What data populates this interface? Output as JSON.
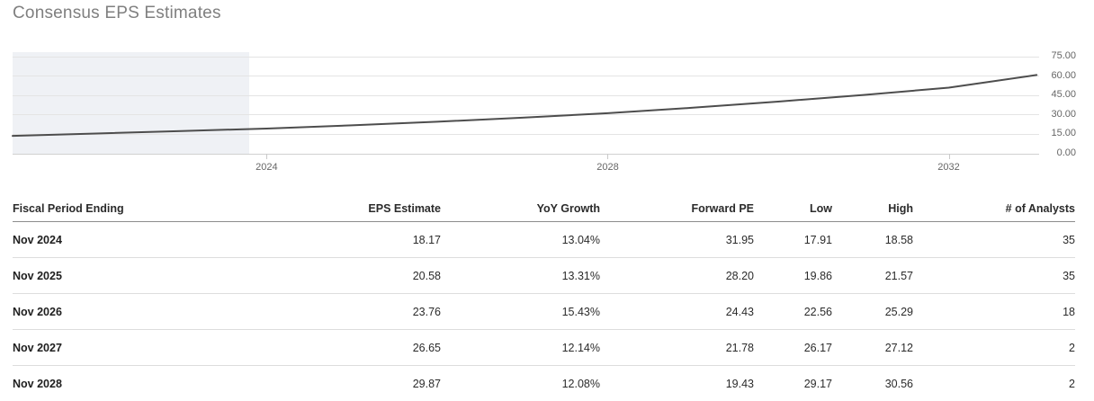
{
  "title": "Consensus EPS Estimates",
  "chart_data": {
    "type": "line",
    "title": "Consensus EPS Estimates",
    "xlabel": "",
    "ylabel": "",
    "xlim": [
      2021.02,
      2033.06
    ],
    "ylim": [
      0,
      75
    ],
    "grid": "horizontal",
    "y_axis_position": "right",
    "legend": "none",
    "x_ticks": [
      {
        "value": 2024,
        "label": "2024"
      },
      {
        "value": 2028,
        "label": "2028"
      },
      {
        "value": 2032,
        "label": "2032"
      }
    ],
    "y_ticks": [
      {
        "value": 0,
        "label": "0.00"
      },
      {
        "value": 15,
        "label": "15.00"
      },
      {
        "value": 30,
        "label": "30.00"
      },
      {
        "value": 45,
        "label": "45.00"
      },
      {
        "value": 60,
        "label": "60.00"
      },
      {
        "value": 75,
        "label": "75.00"
      }
    ],
    "series": [
      {
        "name": "EPS Estimate",
        "color": "#4d4d4d",
        "points": [
          [
            2021.02,
            13.5
          ],
          [
            2022.0,
            15.3
          ],
          [
            2023.0,
            17.2
          ],
          [
            2024.0,
            19.1
          ],
          [
            2025.0,
            21.6
          ],
          [
            2026.0,
            24.4
          ],
          [
            2027.0,
            27.5
          ],
          [
            2028.0,
            31.0
          ],
          [
            2029.0,
            35.2
          ],
          [
            2030.0,
            39.9
          ],
          [
            2031.0,
            45.1
          ],
          [
            2032.0,
            50.7
          ],
          [
            2033.03,
            60.5
          ]
        ]
      }
    ],
    "highlight_band": {
      "x_start": 2021.02,
      "x_end": 2023.79,
      "color": "#eff1f5",
      "note": "shaded historical period"
    }
  },
  "table": {
    "columns": [
      {
        "label": "Fiscal Period Ending",
        "align": "left"
      },
      {
        "label": "EPS Estimate",
        "align": "right"
      },
      {
        "label": "YoY Growth",
        "align": "right"
      },
      {
        "label": "Forward PE",
        "align": "right"
      },
      {
        "label": "Low",
        "align": "right"
      },
      {
        "label": "High",
        "align": "right"
      },
      {
        "label": "# of Analysts",
        "align": "right"
      }
    ],
    "rows": [
      [
        "Nov 2024",
        "18.17",
        "13.04%",
        "31.95",
        "17.91",
        "18.58",
        "35"
      ],
      [
        "Nov 2025",
        "20.58",
        "13.31%",
        "28.20",
        "19.86",
        "21.57",
        "35"
      ],
      [
        "Nov 2026",
        "23.76",
        "15.43%",
        "24.43",
        "22.56",
        "25.29",
        "18"
      ],
      [
        "Nov 2027",
        "26.65",
        "12.14%",
        "21.78",
        "26.17",
        "27.12",
        "2"
      ],
      [
        "Nov 2028",
        "29.87",
        "12.08%",
        "19.43",
        "29.17",
        "30.56",
        "2"
      ]
    ]
  },
  "colors": {
    "title_text": "#7f7f7f",
    "series_line": "#4d4d4d",
    "highlight_band": "#eff1f5",
    "gridline": "#e4e4e4",
    "axis_line": "#d0d0d0",
    "tick_label": "#666666",
    "table_text": "#2b2b2b",
    "header_border": "#8c8c8c",
    "row_border": "#dddddd"
  }
}
